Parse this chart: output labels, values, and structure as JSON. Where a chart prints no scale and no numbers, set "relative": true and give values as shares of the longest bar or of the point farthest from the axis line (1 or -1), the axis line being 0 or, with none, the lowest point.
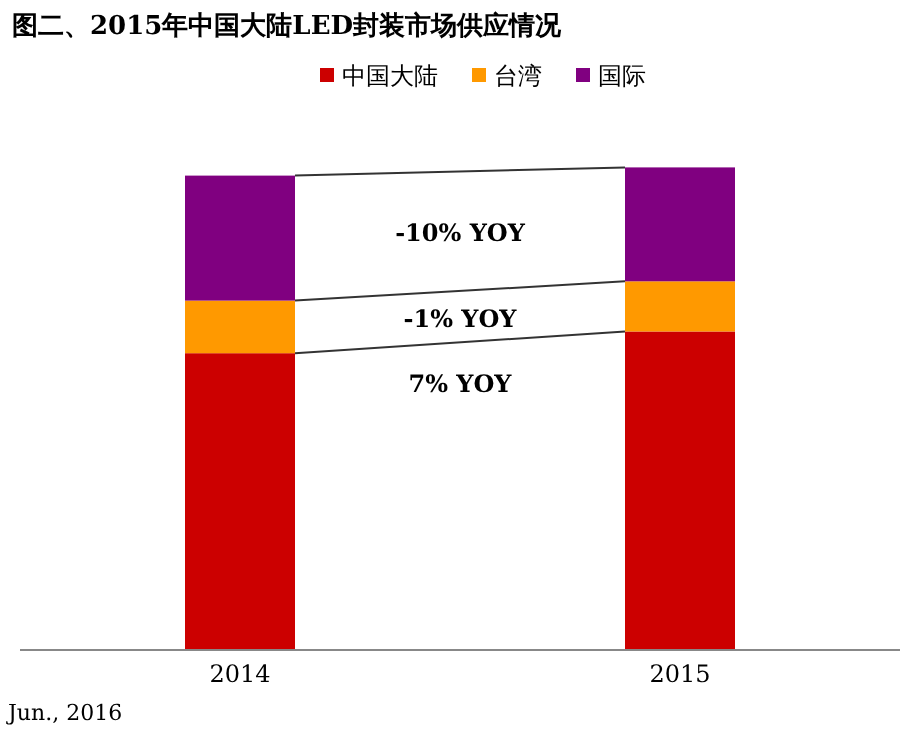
{
  "chart_data": {
    "type": "bar",
    "title": "图二、2015年中国大陆LED封装市场供应情况",
    "categories": [
      "2014",
      "2015"
    ],
    "stacked": true,
    "relative": true,
    "legend": "top",
    "series": [
      {
        "name": "中国大陆",
        "color": "#cc0000",
        "values": [
          0.615,
          0.66
        ]
      },
      {
        "name": "台湾",
        "color": "#ff9900",
        "values": [
          0.109,
          0.104
        ]
      },
      {
        "name": "国际",
        "color": "#800080",
        "values": [
          0.259,
          0.236
        ]
      }
    ],
    "annotations": [
      "-10% YOY",
      "-1% YOY",
      "7% YOY",
      "Jun., 2016"
    ]
  }
}
